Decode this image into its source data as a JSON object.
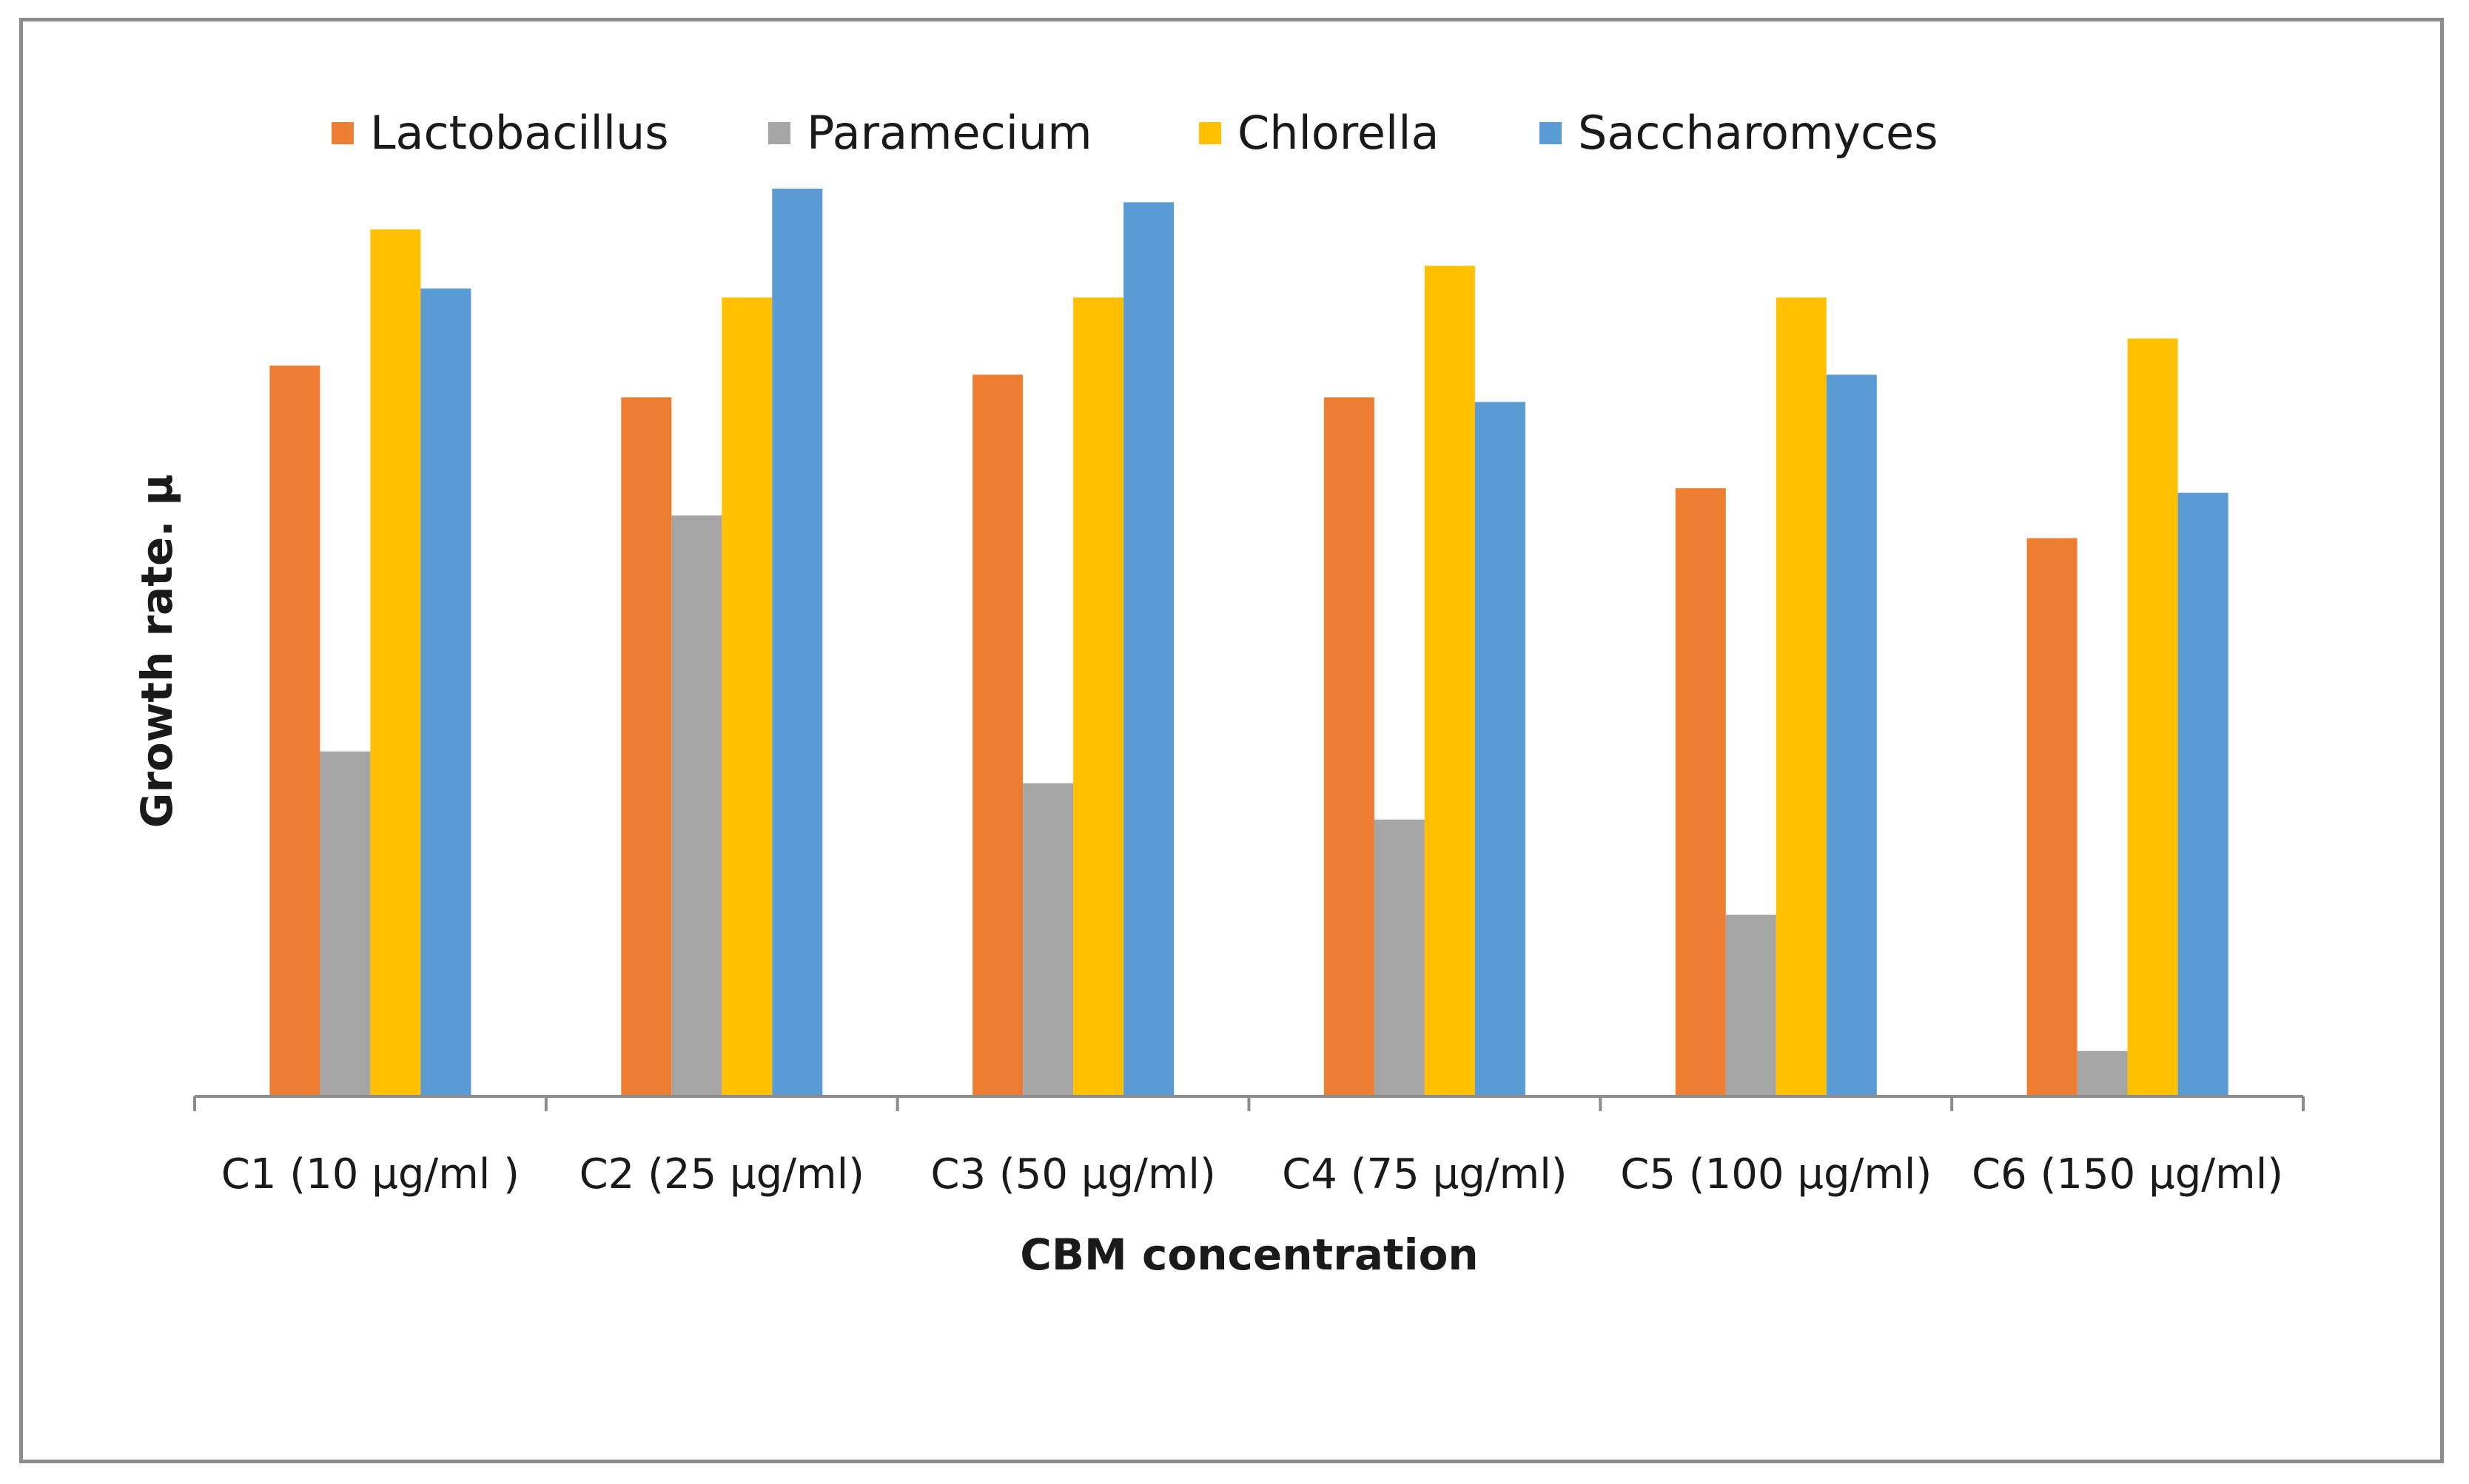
{
  "chart_data": {
    "type": "bar",
    "title": "",
    "xlabel": "CBM concentration",
    "ylabel": "Growth rate. μ",
    "ylim": [
      0,
      100
    ],
    "y_axis_ticks_shown": false,
    "grid": false,
    "legend_position": "top",
    "categories": [
      "C1 (10 μg/ml )",
      "C2 (25 μg/ml)",
      "C3 (50 μg/ml)",
      "C4 (75 μg/ml)",
      "C5 (100 μg/ml)",
      "C6 (150 μg/ml)"
    ],
    "series": [
      {
        "name": "Lactobacillus",
        "color": "#ED7D31",
        "values": [
          80.5,
          77,
          79.5,
          77,
          67,
          61.5
        ]
      },
      {
        "name": "Paramecium",
        "color": "#A5A5A5",
        "values": [
          38,
          64,
          34.5,
          30.5,
          20,
          5
        ]
      },
      {
        "name": "Chlorella",
        "color": "#FFC000",
        "values": [
          95.5,
          88,
          88,
          91.5,
          88,
          83.5
        ]
      },
      {
        "name": "Saccharomyces",
        "color": "#5B9BD5",
        "values": [
          89,
          100,
          98.5,
          76.5,
          79.5,
          66.5
        ]
      }
    ]
  }
}
